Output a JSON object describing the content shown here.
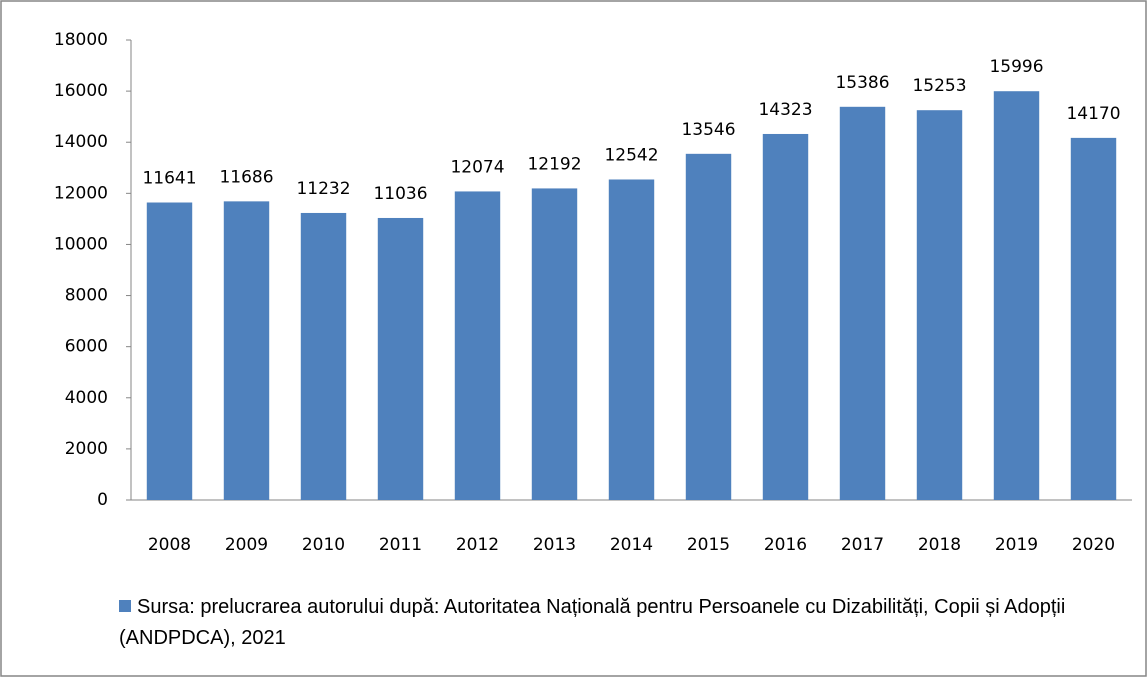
{
  "chart_data": {
    "type": "bar",
    "categories": [
      "2008",
      "2009",
      "2010",
      "2011",
      "2012",
      "2013",
      "2014",
      "2015",
      "2016",
      "2017",
      "2018",
      "2019",
      "2020"
    ],
    "series": [
      {
        "name": "Sursa: prelucrarea autorului după: Autoritatea Națională pentru Persoanele cu Dizabilități, Copii și Adopții (ANDPDCA), 2021",
        "color": "#4f81bd",
        "values": [
          11641,
          11686,
          11232,
          11036,
          12074,
          12192,
          12542,
          13546,
          14323,
          15386,
          15253,
          15996,
          14170
        ]
      }
    ],
    "ylim": [
      0,
      18000
    ],
    "yticks": [
      0,
      2000,
      4000,
      6000,
      8000,
      10000,
      12000,
      14000,
      16000,
      18000
    ],
    "grid": false,
    "legend": "bottom"
  }
}
